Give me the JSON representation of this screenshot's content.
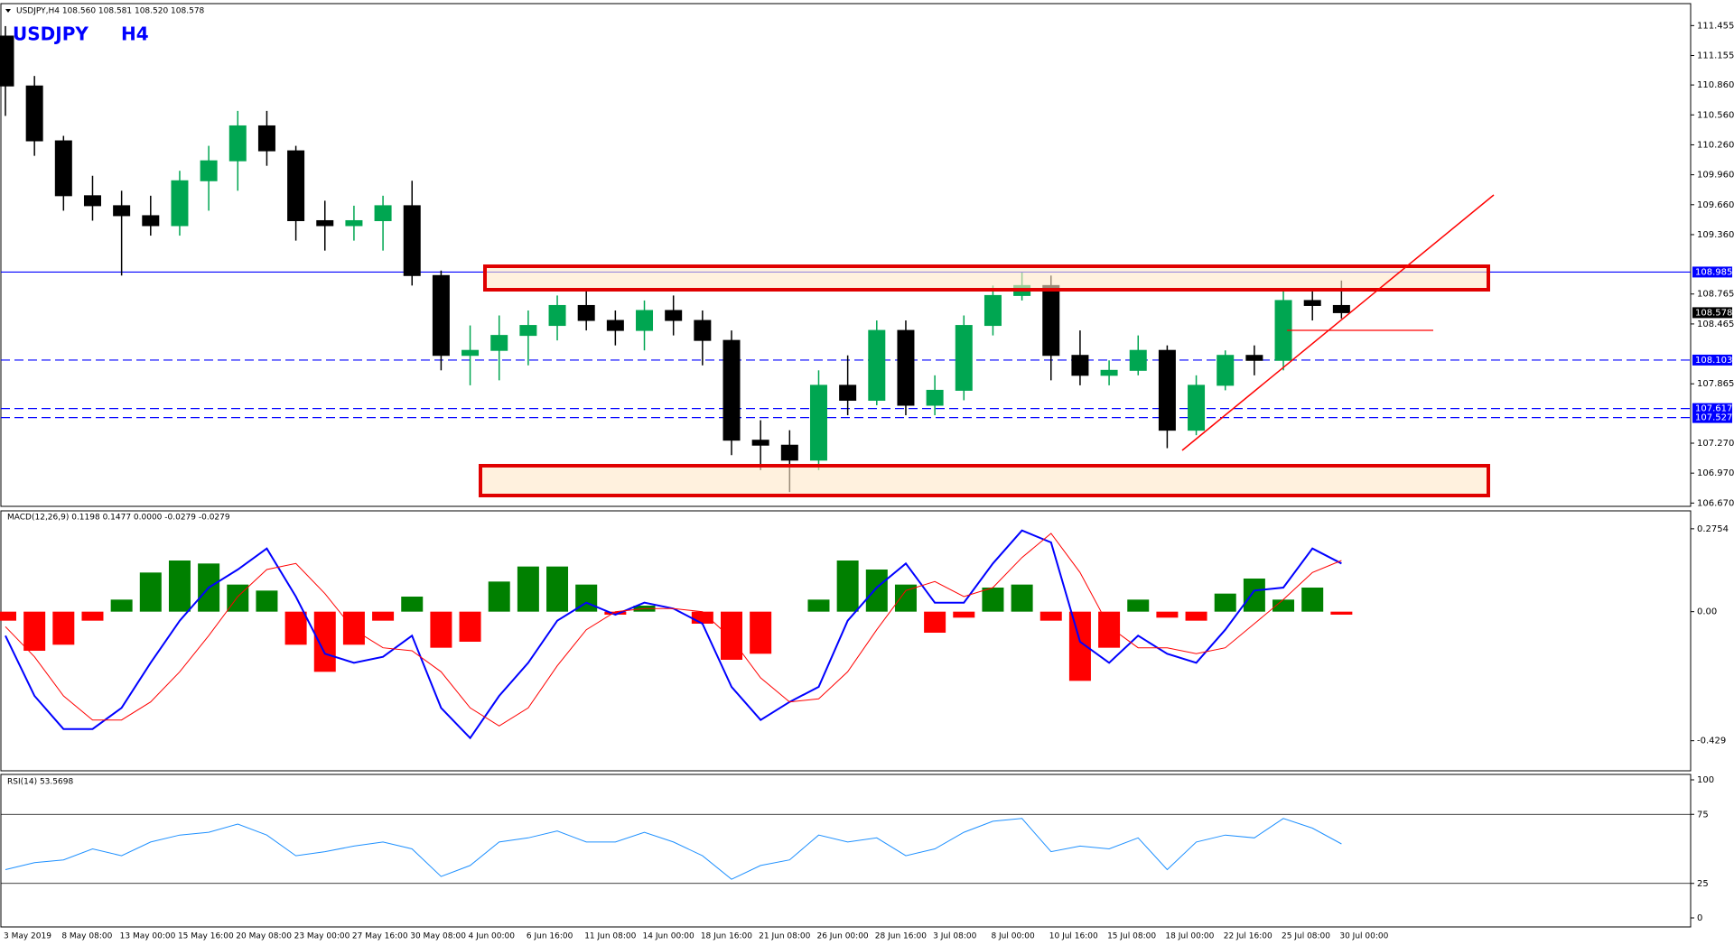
{
  "chart_data": [
    {
      "type": "candlestick",
      "subtitle": "USDJPY,H4  108.560 108.581 108.520 108.578",
      "symbol": "USDJPY",
      "timeframe": "H4",
      "categories": [
        "3 May 2019",
        null,
        "8 May 08:00",
        null,
        "13 May 00:00",
        null,
        "15 May 16:00",
        null,
        "20 May 08:00",
        null,
        "23 May 00:00",
        null,
        "27 May 16:00",
        null,
        "30 May 08:00",
        null,
        "4 Jun 00:00",
        null,
        "6 Jun 16:00",
        null,
        "11 Jun 08:00",
        null,
        "14 Jun 00:00",
        null,
        "18 Jun 16:00",
        null,
        "21 Jun 08:00",
        null,
        "26 Jun 00:00",
        null,
        "28 Jun 16:00",
        null,
        "3 Jul 08:00",
        null,
        "8 Jul 00:00",
        null,
        "10 Jul 16:00",
        null,
        "15 Jul 08:00",
        null,
        "18 Jul 00:00",
        null,
        "22 Jul 16:00",
        null,
        "25 Jul 08:00",
        null,
        "30 Jul 00:00"
      ],
      "open": [
        111.35,
        110.85,
        110.3,
        109.75,
        109.65,
        109.55,
        109.45,
        109.9,
        110.1,
        110.45,
        110.2,
        109.5,
        109.45,
        109.5,
        109.65,
        108.95,
        108.15,
        108.2,
        108.35,
        108.45,
        108.65,
        108.5,
        108.4,
        108.6,
        108.5,
        108.3,
        107.3,
        107.25,
        107.1,
        107.85,
        107.7,
        108.4,
        107.65,
        107.8,
        108.45,
        108.75,
        108.85,
        108.15,
        107.95,
        108.0,
        108.2,
        107.4,
        107.85,
        108.15,
        108.1,
        108.7,
        108.65
      ],
      "high": [
        111.45,
        110.95,
        110.35,
        109.95,
        109.8,
        109.75,
        110.0,
        110.25,
        110.6,
        110.6,
        110.25,
        109.7,
        109.65,
        109.75,
        109.9,
        109.0,
        108.45,
        108.55,
        108.6,
        108.75,
        108.8,
        108.6,
        108.7,
        108.75,
        108.6,
        108.4,
        107.5,
        107.4,
        108.0,
        108.15,
        108.5,
        108.5,
        107.95,
        108.55,
        108.85,
        108.98,
        108.95,
        108.4,
        108.1,
        108.35,
        108.25,
        107.95,
        108.2,
        108.25,
        108.8,
        108.8,
        108.9
      ],
      "low": [
        110.55,
        110.15,
        109.6,
        109.5,
        108.95,
        109.35,
        109.35,
        109.6,
        109.8,
        110.05,
        109.3,
        109.2,
        109.3,
        109.2,
        108.85,
        108.0,
        107.85,
        107.9,
        108.05,
        108.3,
        108.4,
        108.25,
        108.2,
        108.35,
        108.05,
        107.15,
        107.0,
        106.78,
        107.0,
        107.55,
        107.65,
        107.55,
        107.55,
        107.7,
        108.35,
        108.7,
        107.9,
        107.85,
        107.85,
        107.95,
        107.22,
        107.35,
        107.8,
        107.95,
        108.0,
        108.5,
        108.52
      ],
      "close": [
        110.85,
        110.3,
        109.75,
        109.65,
        109.55,
        109.45,
        109.9,
        110.1,
        110.45,
        110.2,
        109.5,
        109.45,
        109.5,
        109.65,
        108.95,
        108.15,
        108.2,
        108.35,
        108.45,
        108.65,
        108.5,
        108.4,
        108.6,
        108.5,
        108.3,
        107.3,
        107.25,
        107.1,
        107.85,
        107.7,
        108.4,
        107.65,
        107.8,
        108.45,
        108.75,
        108.85,
        108.15,
        107.95,
        108.0,
        108.2,
        107.4,
        107.85,
        108.15,
        108.1,
        108.7,
        108.65,
        108.578
      ],
      "up_color": "#00a651",
      "down_color": "#000000",
      "ylim": [
        106.637,
        111.621
      ],
      "yticks": [
        111.455,
        111.155,
        {
          "value": 110.86,
          "label": "110.860"
        },
        {
          "value": 110.56,
          "label": "110.560"
        },
        {
          "value": 110.26,
          "label": "110.260"
        },
        {
          "value": 109.96,
          "label": "109.960"
        },
        {
          "value": 109.66,
          "label": "109.660"
        },
        {
          "value": 109.36,
          "label": "109.360"
        },
        108.765,
        108.465,
        107.865,
        {
          "value": 107.27,
          "label": "107.270"
        },
        {
          "value": 106.97,
          "label": "106.970"
        },
        {
          "value": 106.67,
          "label": "106.670"
        }
      ],
      "levels": [
        {
          "value": 108.985,
          "style": "solid"
        },
        {
          "value": 108.103,
          "style": "dashed"
        },
        {
          "value": 107.617,
          "style": "dashed"
        },
        {
          "value": 107.527,
          "style": "dashed"
        },
        {
          "value": 108.578,
          "style": "current"
        }
      ],
      "level_color": "#0000ff"
    },
    {
      "type": "macd",
      "title": "MACD(12,26,9) 0.1198 0.1477 0.0000 -0.0279 -0.0279",
      "series": [
        {
          "color": "#0000ff",
          "values": [
            -0.08,
            -0.28,
            -0.39,
            -0.39,
            -0.32,
            -0.17,
            -0.03,
            0.08,
            0.14,
            0.21,
            0.05,
            -0.14,
            -0.17,
            -0.15,
            -0.08,
            -0.32,
            -0.42,
            -0.28,
            -0.17,
            -0.03,
            0.03,
            -0.01,
            0.03,
            0.01,
            -0.04,
            -0.25,
            -0.36,
            -0.3,
            -0.25,
            -0.03,
            0.08,
            0.16,
            0.03,
            0.03,
            0.16,
            0.27,
            0.23,
            -0.1,
            -0.17,
            -0.08,
            -0.14,
            -0.17,
            -0.06,
            0.07,
            0.08,
            0.21,
            0.16
          ]
        },
        {
          "color": "#ff0000",
          "values": [
            -0.05,
            -0.15,
            -0.28,
            -0.36,
            -0.36,
            -0.3,
            -0.2,
            -0.08,
            0.05,
            0.14,
            0.16,
            0.06,
            -0.06,
            -0.12,
            -0.13,
            -0.2,
            -0.32,
            -0.38,
            -0.32,
            -0.18,
            -0.06,
            0.0,
            0.01,
            0.01,
            0.0,
            -0.09,
            -0.22,
            -0.3,
            -0.29,
            -0.2,
            -0.06,
            0.07,
            0.1,
            0.05,
            0.08,
            0.18,
            0.26,
            0.13,
            -0.05,
            -0.12,
            -0.12,
            -0.14,
            -0.12,
            -0.04,
            0.04,
            0.13,
            0.17
          ]
        }
      ],
      "histogram": {
        "pos_color": "#008000",
        "neg_color": "#ff0000",
        "values": [
          -0.03,
          -0.13,
          -0.11,
          -0.03,
          0.04,
          0.13,
          0.17,
          0.16,
          0.09,
          0.07,
          -0.11,
          -0.2,
          -0.11,
          -0.03,
          0.05,
          -0.12,
          -0.1,
          0.1,
          0.15,
          0.15,
          0.09,
          -0.01,
          0.02,
          0.0,
          -0.04,
          -0.16,
          -0.14,
          0.0,
          0.04,
          0.17,
          0.14,
          0.09,
          -0.07,
          -0.02,
          0.08,
          0.09,
          -0.03,
          -0.23,
          -0.12,
          0.04,
          -0.02,
          -0.03,
          0.06,
          0.11,
          0.04,
          0.08,
          -0.01
        ]
      },
      "ylim": [
        -0.529,
        0.335
      ],
      "yticks": [
        0.2754,
        {
          "value": 0,
          "label": "0.00"
        },
        -0.429
      ]
    },
    {
      "type": "line",
      "title": "RSI(14) 53.5698",
      "color": "#1e90ff",
      "values": [
        35,
        40,
        42,
        50,
        45,
        55,
        60,
        62,
        68,
        60,
        45,
        48,
        52,
        55,
        50,
        30,
        38,
        55,
        58,
        63,
        55,
        55,
        62,
        55,
        45,
        28,
        38,
        42,
        60,
        55,
        58,
        45,
        50,
        62,
        70,
        72,
        48,
        52,
        50,
        58,
        35,
        55,
        60,
        58,
        72,
        65,
        53.6
      ],
      "ylim": [
        0,
        100
      ],
      "yticks": [
        100,
        75,
        25,
        0
      ],
      "levels": [
        75,
        25
      ]
    }
  ]
}
